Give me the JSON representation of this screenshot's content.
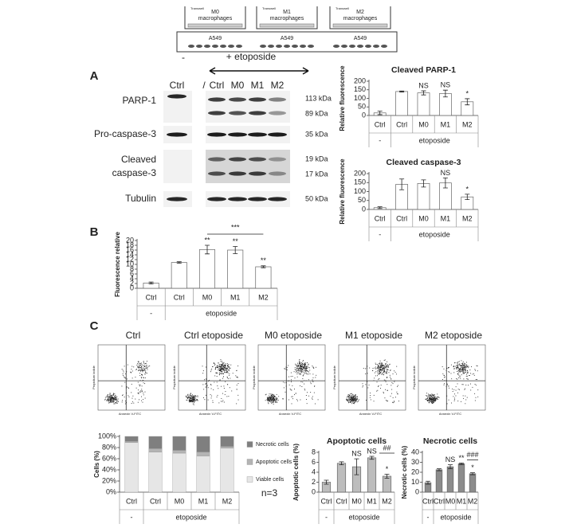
{
  "schematic": {
    "transwell": "Transwell",
    "cell": "macrophages",
    "well": "A549",
    "inserts": [
      "M0",
      "M1",
      "M2"
    ]
  },
  "panel_labels": [
    "A",
    "B",
    "C"
  ],
  "blot": {
    "treatment_labels": [
      "-",
      "+ etoposide"
    ],
    "lanes": [
      "Ctrl",
      "/",
      "Ctrl",
      "M0",
      "M1",
      "M2"
    ],
    "rows": [
      "PARP-1",
      "Pro-caspase-3",
      "Cleaved",
      "caspase-3",
      "Tubulin"
    ],
    "sizes": [
      "113 kDa",
      "89 kDa",
      "35 kDa",
      "19 kDa",
      "17 kDa",
      "50 kDa"
    ]
  },
  "flow": {
    "titles": [
      "Ctrl",
      "Ctrl etoposide",
      "M0 etoposide",
      "M1 etoposide",
      "M2 etoposide"
    ],
    "x_label": "Annexin V-FITC",
    "y_label": "Propidium iodide"
  },
  "note": "n=3",
  "chart_data": [
    {
      "type": "bar",
      "title": "Cleaved PARP-1",
      "y_label": "Relative fluorescence",
      "categories": [
        "Ctrl",
        "Ctrl",
        "M0",
        "M1",
        "M2"
      ],
      "group_labels": [
        "-",
        "etoposide"
      ],
      "values": [
        15,
        140,
        132,
        128,
        80
      ],
      "errors": [
        10,
        3,
        12,
        20,
        18
      ],
      "color": "#ffffff",
      "ylim": [
        0,
        200
      ],
      "yticks": [
        0,
        50,
        100,
        150,
        200
      ],
      "annotations": [
        null,
        null,
        "NS",
        "NS",
        "*"
      ]
    },
    {
      "type": "bar",
      "title": "Cleaved caspase-3",
      "y_label": "Relative fluorescence",
      "categories": [
        "Ctrl",
        "Ctrl",
        "M0",
        "M1",
        "M2"
      ],
      "group_labels": [
        "-",
        "etoposide"
      ],
      "values": [
        10,
        140,
        145,
        148,
        70
      ],
      "errors": [
        5,
        30,
        20,
        28,
        15
      ],
      "color": "#ffffff",
      "ylim": [
        0,
        200
      ],
      "yticks": [
        0,
        50,
        100,
        150,
        200
      ],
      "annotations": [
        null,
        null,
        null,
        "NS",
        "*"
      ]
    },
    {
      "type": "bar",
      "y_label": "Fluorescence relative",
      "categories": [
        "Ctrl",
        "Ctrl",
        "M0",
        "M1",
        "M2"
      ],
      "group_labels": [
        "-",
        "etoposide"
      ],
      "values": [
        2.2,
        10.8,
        16.2,
        16,
        9
      ],
      "errors": [
        0.4,
        0.3,
        1.8,
        1.5,
        0.4
      ],
      "color": "#ffffff",
      "ylim": [
        0,
        20
      ],
      "yticks": [
        0,
        2,
        4,
        6,
        8,
        10,
        12,
        14,
        16,
        18,
        20
      ],
      "annotations": [
        null,
        null,
        "**",
        "**",
        "**"
      ],
      "bracket_label": "***"
    },
    {
      "type": "stacked_bar",
      "y_label": "Cells (%)",
      "categories": [
        "Ctrl",
        "Ctrl",
        "M0",
        "M1",
        "M2"
      ],
      "group_labels": [
        "-",
        "etoposide"
      ],
      "legend": "right",
      "series": [
        {
          "name": "Viable cells",
          "color": "#e6e6e6",
          "values": [
            89,
            72,
            70,
            65,
            79
          ]
        },
        {
          "name": "Apoptotic cells",
          "color": "#b4b4b4",
          "values": [
            2,
            6,
            5,
            7,
            3
          ]
        },
        {
          "name": "Necrotic cells",
          "color": "#7f7f7f",
          "values": [
            9,
            22,
            25,
            28,
            18
          ]
        }
      ],
      "ylim": [
        0,
        100
      ],
      "yticks": [
        {
          "value": 0,
          "label": "0%"
        },
        {
          "value": 20,
          "label": "20%"
        },
        {
          "value": 40,
          "label": "40%"
        },
        {
          "value": 60,
          "label": "60%"
        },
        {
          "value": 80,
          "label": "80%"
        },
        {
          "value": 100,
          "label": "100%"
        }
      ]
    },
    {
      "type": "bar",
      "title": "Apoptotic cells",
      "y_label": "Apoptotic cells (%)",
      "categories": [
        "Ctrl",
        "Ctrl",
        "M0",
        "M1",
        "M2"
      ],
      "group_labels": [
        "-",
        "etoposide"
      ],
      "values": [
        2,
        5.8,
        5.1,
        6.9,
        3.2
      ],
      "errors": [
        0.4,
        0.3,
        1.6,
        0.3,
        0.4
      ],
      "color": "#bdbdbd",
      "ylim": [
        0,
        8
      ],
      "yticks": [
        0,
        2,
        4,
        6,
        8
      ],
      "annotations": [
        null,
        null,
        "NS",
        "NS",
        "*"
      ],
      "bracket_label": "##"
    },
    {
      "type": "bar",
      "title": "Necrotic cells",
      "y_label": "Necrotic cells (%)",
      "categories": [
        "Ctrl",
        "Ctrl",
        "M0",
        "M1",
        "M2"
      ],
      "group_labels": [
        "-",
        "etoposide"
      ],
      "values": [
        9.5,
        22.5,
        25.5,
        28.5,
        18.5
      ],
      "errors": [
        1.5,
        1,
        2,
        0.8,
        1
      ],
      "color": "#8c8c8c",
      "ylim": [
        0,
        40
      ],
      "yticks": [
        0,
        10,
        20,
        30,
        40
      ],
      "annotations": [
        null,
        null,
        "NS",
        "**",
        "*"
      ],
      "bracket_label": "###"
    }
  ]
}
